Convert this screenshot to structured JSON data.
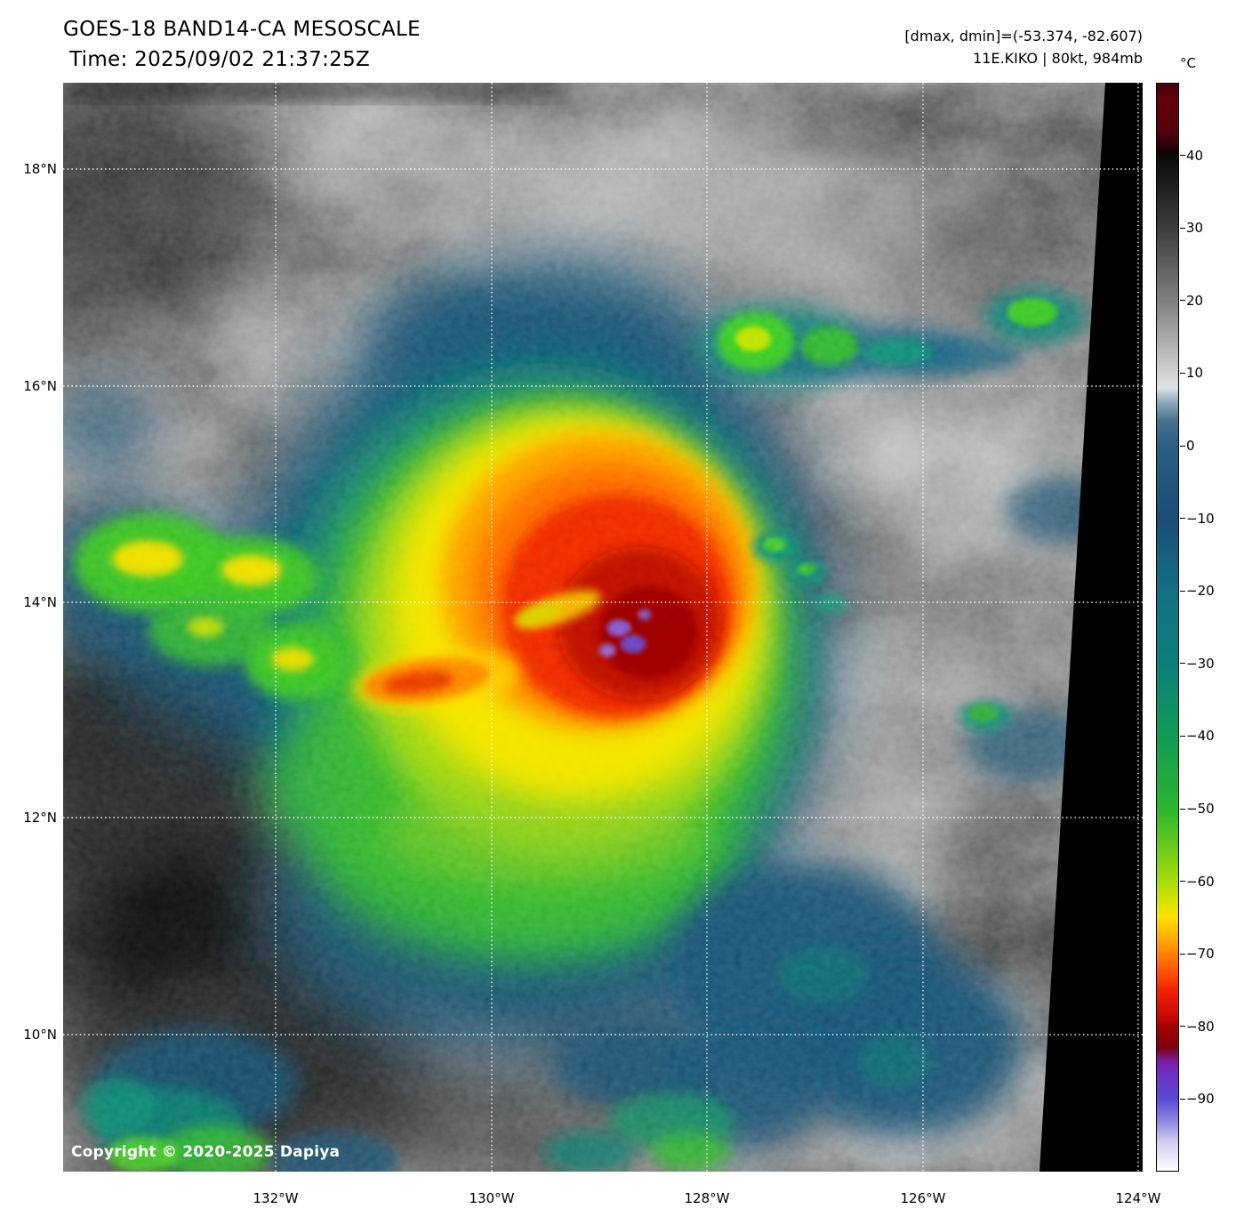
{
  "header": {
    "title": "GOES-18 BAND14-CA MESOSCALE",
    "time": "Time: 2025/09/02 21:37:25Z",
    "dminmax": "[dmax, dmin]=(-53.374, -82.607)",
    "storm_info": "11E.KIKO | 80kt, 984mb"
  },
  "colorbar": {
    "unit": "°C",
    "ticks": [
      40,
      30,
      20,
      10,
      0,
      -10,
      -20,
      -30,
      -40,
      -50,
      -60,
      -70,
      -80,
      -90
    ],
    "scale_top_value": 50,
    "scale_bottom_value": -100
  },
  "axes": {
    "lat_ticks": [
      "18°N",
      "16°N",
      "14°N",
      "12°N",
      "10°N"
    ],
    "lon_ticks": [
      "132°W",
      "130°W",
      "128°W",
      "126°W",
      "124°W"
    ]
  },
  "footer": {
    "copyright": "Copyright © 2020-2025 Dapiya"
  },
  "legend_colors": {
    "warm_gray_max": "#d2d2d2",
    "cold_blue": "#1d4d75",
    "teal": "#0d7f7b",
    "green": "#2cb52c",
    "yellow": "#ffdf00",
    "orange": "#ff8300",
    "red": "#f22400",
    "dark_red": "#7c0010",
    "purple": "#6b35c6"
  }
}
